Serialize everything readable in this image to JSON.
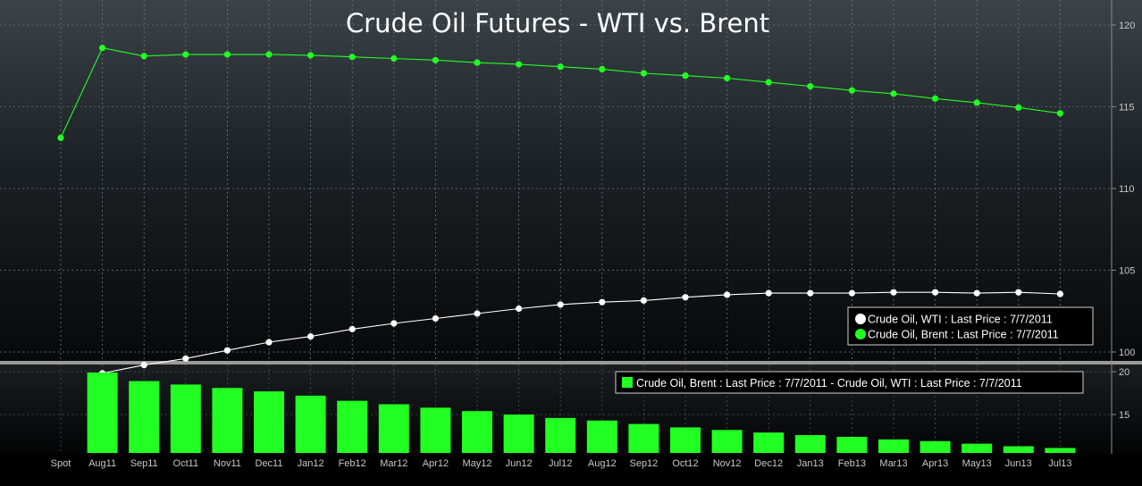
{
  "chart_data": [
    {
      "type": "line",
      "title": "Crude Oil Futures - WTI vs. Brent",
      "x": [
        "Spot",
        "Aug11",
        "Sep11",
        "Oct11",
        "Nov11",
        "Dec11",
        "Jan12",
        "Feb12",
        "Mar12",
        "Apr12",
        "May12",
        "Jun12",
        "Jul12",
        "Aug12",
        "Sep12",
        "Oct12",
        "Nov12",
        "Dec12",
        "Jan13",
        "Feb13",
        "Mar13",
        "Apr13",
        "May13",
        "Jun13",
        "Jul13"
      ],
      "ylim": [
        97.5,
        121.5
      ],
      "yticks": [
        100,
        105,
        110,
        115,
        120
      ],
      "y_axis_side": "right",
      "grid": true,
      "legend_position": "bottom-right",
      "series": [
        {
          "name": "Crude Oil, WTI : Last Price : 7/7/2011",
          "color": "#ffffff",
          "values": [
            null,
            98.7,
            99.2,
            99.6,
            100.1,
            100.6,
            100.95,
            101.4,
            101.75,
            102.05,
            102.35,
            102.65,
            102.9,
            103.05,
            103.15,
            103.35,
            103.5,
            103.6,
            103.6,
            103.6,
            103.65,
            103.65,
            103.6,
            103.65,
            103.55
          ]
        },
        {
          "name": "Crude Oil, Brent : Last Price : 7/7/2011",
          "color": "#22ff22",
          "values": [
            113.1,
            118.6,
            118.1,
            118.2,
            118.2,
            118.2,
            118.15,
            118.05,
            117.95,
            117.85,
            117.7,
            117.6,
            117.45,
            117.3,
            117.05,
            116.9,
            116.75,
            116.5,
            116.25,
            116.0,
            115.8,
            115.5,
            115.25,
            114.95,
            114.6
          ]
        }
      ]
    },
    {
      "type": "bar",
      "x": [
        "Spot",
        "Aug11",
        "Sep11",
        "Oct11",
        "Nov11",
        "Dec11",
        "Jan12",
        "Feb12",
        "Mar12",
        "Apr12",
        "May12",
        "Jun12",
        "Jul12",
        "Aug12",
        "Sep12",
        "Oct12",
        "Nov12",
        "Dec12",
        "Jan13",
        "Feb13",
        "Mar13",
        "Apr13",
        "May13",
        "Jun13",
        "Jul13"
      ],
      "ylim": [
        10.5,
        21.5
      ],
      "yticks": [
        15,
        20
      ],
      "y_axis_side": "right",
      "grid": true,
      "legend_position": "top-right",
      "series": [
        {
          "name": "Crude Oil, Brent : Last Price : 7/7/2011 - Crude Oil, WTI : Last Price : 7/7/2011",
          "color": "#22ff22",
          "values": [
            null,
            19.9,
            18.9,
            18.5,
            18.1,
            17.7,
            17.2,
            16.6,
            16.2,
            15.8,
            15.4,
            15.0,
            14.6,
            14.3,
            13.9,
            13.5,
            13.2,
            12.9,
            12.6,
            12.4,
            12.1,
            11.9,
            11.6,
            11.3,
            11.1
          ]
        }
      ]
    }
  ]
}
